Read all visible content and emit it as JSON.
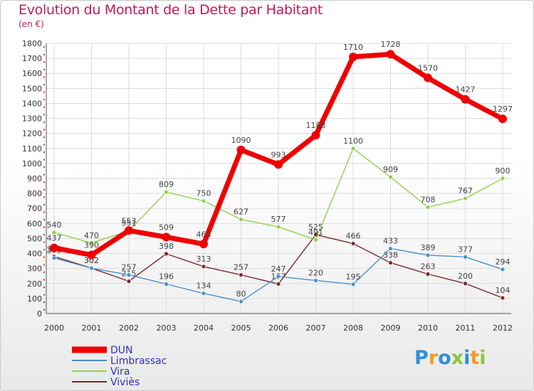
{
  "title": "Evolution du Montant de la Dette par Habitant",
  "subtitle": "(en €)",
  "logo": {
    "text": "Proxiti",
    "letter_colors": [
      "#2f8fd6",
      "#f29b20",
      "#2f8fd6",
      "#8cc63f",
      "#2f8fd6",
      "#f29b20",
      "#8cc63f"
    ]
  },
  "colors": {
    "DUN": "#ee0000",
    "Limbrassac": "#4b8fc9",
    "Vira": "#8fd14f",
    "Viviès": "#7a2a2a"
  },
  "chart_data": {
    "type": "line",
    "title": "Evolution du Montant de la Dette par Habitant",
    "ylabel": "(en €)",
    "x": [
      "2000",
      "2001",
      "2002",
      "2003",
      "2004",
      "2005",
      "2006",
      "2007",
      "2008",
      "2009",
      "2010",
      "2011",
      "2012"
    ],
    "ylim": [
      0,
      1800
    ],
    "yticks": [
      0,
      100,
      200,
      300,
      400,
      500,
      600,
      700,
      800,
      900,
      1000,
      1100,
      1200,
      1300,
      1400,
      1500,
      1600,
      1700,
      1800
    ],
    "grid": true,
    "legend": "bottom-left",
    "series": [
      {
        "name": "Viviès",
        "values": [
          380,
          302,
          215,
          398,
          313,
          257,
          197,
          525,
          466,
          338,
          263,
          200,
          104
        ]
      },
      {
        "name": "Limbrassac",
        "values": [
          370,
          302,
          257,
          196,
          134,
          80,
          247,
          220,
          195,
          433,
          389,
          377,
          294
        ]
      },
      {
        "name": "Vira",
        "values": [
          540,
          470,
          551,
          809,
          750,
          627,
          577,
          491,
          1100,
          909,
          708,
          767,
          900
        ]
      },
      {
        "name": "DUN",
        "values": [
          437,
          390,
          553,
          509,
          463,
          1090,
          993,
          1188,
          1710,
          1728,
          1570,
          1427,
          1297
        ]
      }
    ],
    "data_labels": {
      "Viviès": [
        "380",
        "302",
        "215",
        "398",
        "313",
        "257",
        "197",
        "525",
        "466",
        "338",
        "263",
        "200",
        "104"
      ],
      "Limbrassac": [
        "370",
        "302",
        "257",
        "196",
        "134",
        "80",
        "247",
        "220",
        "195",
        "433",
        "389",
        "377",
        "294"
      ],
      "Vira": [
        "540",
        "470",
        "551",
        "809",
        "750",
        "627",
        "577",
        "491",
        "1100",
        "909",
        "708",
        "767",
        "900"
      ],
      "DUN": [
        "437",
        "390",
        "553",
        "509",
        "463",
        "1090",
        "993",
        "1188",
        "1710",
        "1728",
        "1570",
        "1427",
        "1297"
      ]
    }
  }
}
